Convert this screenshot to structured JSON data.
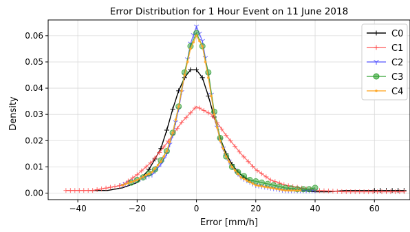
{
  "chart_data": {
    "type": "line",
    "title": "Error Distribution for 1 Hour Event on 11 June 2018",
    "xlabel": "Error [mm/h]",
    "ylabel": "Density",
    "xlim": [
      -50,
      72
    ],
    "ylim": [
      -0.0025,
      0.066
    ],
    "xticks": [
      -40,
      -20,
      0,
      20,
      40,
      60
    ],
    "xtick_labels": [
      "−40",
      "−20",
      "0",
      "20",
      "40",
      "60"
    ],
    "yticks": [
      0.0,
      0.01,
      0.02,
      0.03,
      0.04,
      0.05,
      0.06
    ],
    "ytick_labels": [
      "0.00",
      "0.01",
      "0.02",
      "0.03",
      "0.04",
      "0.05",
      "0.06"
    ],
    "grid": true,
    "legend": "top-right",
    "series": [
      {
        "name": "C0",
        "color": "#000000",
        "marker": "plus-sparse",
        "x": [
          -36,
          -30,
          -25,
          -20,
          -16,
          -12,
          -10,
          -8,
          -6,
          -4,
          -2,
          0,
          2,
          4,
          6,
          8,
          10,
          12,
          14,
          16,
          20,
          25,
          30,
          35,
          40,
          45,
          50,
          55,
          60,
          65,
          70
        ],
        "y": [
          0.001,
          0.001,
          0.002,
          0.004,
          0.009,
          0.017,
          0.024,
          0.032,
          0.039,
          0.044,
          0.047,
          0.047,
          0.044,
          0.037,
          0.029,
          0.021,
          0.015,
          0.011,
          0.008,
          0.006,
          0.003,
          0.002,
          0.001,
          0.001,
          0.0005,
          0.0005,
          0.001,
          0.001,
          0.001,
          0.001,
          0.001
        ]
      },
      {
        "name": "C1",
        "color": "#ff4d4d",
        "marker": "plus",
        "x": [
          -44,
          -40,
          -35,
          -30,
          -25,
          -20,
          -15,
          -10,
          -5,
          0,
          5,
          10,
          15,
          20,
          25,
          30,
          35,
          40,
          45,
          50,
          55,
          60,
          65,
          70
        ],
        "y": [
          0.001,
          0.001,
          0.001,
          0.002,
          0.003,
          0.007,
          0.012,
          0.019,
          0.027,
          0.033,
          0.03,
          0.022,
          0.015,
          0.009,
          0.005,
          0.003,
          0.002,
          0.001,
          0.0008,
          0.0005,
          0.0005,
          0.0005,
          0.0005,
          0.0005
        ]
      },
      {
        "name": "C2",
        "color": "#4d4dff",
        "marker": "tri-down",
        "x": [
          -25,
          -20,
          -15,
          -12,
          -10,
          -8,
          -6,
          -4,
          -2,
          0,
          2,
          4,
          6,
          8,
          10,
          12,
          15,
          20,
          25,
          30,
          35,
          40
        ],
        "y": [
          0.003,
          0.005,
          0.007,
          0.011,
          0.015,
          0.022,
          0.032,
          0.045,
          0.057,
          0.0635,
          0.058,
          0.045,
          0.03,
          0.02,
          0.014,
          0.01,
          0.006,
          0.003,
          0.002,
          0.001,
          0.001,
          0.001
        ]
      },
      {
        "name": "C3",
        "color": "#2ca02c",
        "marker": "circle",
        "x": [
          -22,
          -18,
          -14,
          -10,
          -8,
          -6,
          -4,
          -2,
          0,
          2,
          4,
          6,
          8,
          10,
          12,
          14,
          18,
          22,
          26,
          30,
          34,
          38,
          40
        ],
        "y": [
          0.004,
          0.006,
          0.009,
          0.016,
          0.023,
          0.033,
          0.046,
          0.056,
          0.061,
          0.056,
          0.046,
          0.031,
          0.021,
          0.014,
          0.01,
          0.008,
          0.005,
          0.004,
          0.003,
          0.002,
          0.0015,
          0.0015,
          0.002
        ]
      },
      {
        "name": "C4",
        "color": "#ffa726",
        "marker": "dot",
        "x": [
          -25,
          -20,
          -15,
          -12,
          -10,
          -8,
          -6,
          -4,
          -2,
          0,
          2,
          4,
          6,
          8,
          10,
          12,
          15,
          20,
          25,
          30,
          35
        ],
        "y": [
          0.003,
          0.005,
          0.008,
          0.012,
          0.016,
          0.023,
          0.033,
          0.045,
          0.055,
          0.06,
          0.056,
          0.044,
          0.03,
          0.02,
          0.014,
          0.01,
          0.006,
          0.003,
          0.002,
          0.001,
          0.001
        ]
      }
    ]
  }
}
